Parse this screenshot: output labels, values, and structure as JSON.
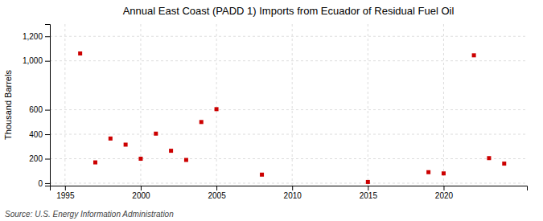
{
  "chart_data": {
    "type": "scatter",
    "title": "Annual East Coast (PADD 1) Imports from Ecuador of Residual Fuel Oil",
    "ylabel": "Thousand Barrels",
    "source": "Source: U.S. Energy Information Administration",
    "x": [
      1996,
      1997,
      1998,
      1999,
      2000,
      2001,
      2002,
      2003,
      2004,
      2005,
      2008,
      2015,
      2019,
      2020,
      2022,
      2023,
      2024
    ],
    "values": [
      1060,
      170,
      365,
      315,
      200,
      405,
      265,
      190,
      500,
      605,
      70,
      10,
      90,
      80,
      1045,
      205,
      160
    ],
    "color": "#cc0000",
    "marker": "square",
    "xlim": [
      1994.0,
      2025.5
    ],
    "xticks": [
      1995,
      2000,
      2005,
      2010,
      2015,
      2020
    ],
    "ylim": [
      -20,
      1300
    ],
    "yticks": [
      0,
      200,
      400,
      600,
      {
        "value": 1000,
        "label": "1,000"
      },
      {
        "value": 1200,
        "label": "1,200"
      }
    ],
    "grid": true
  }
}
